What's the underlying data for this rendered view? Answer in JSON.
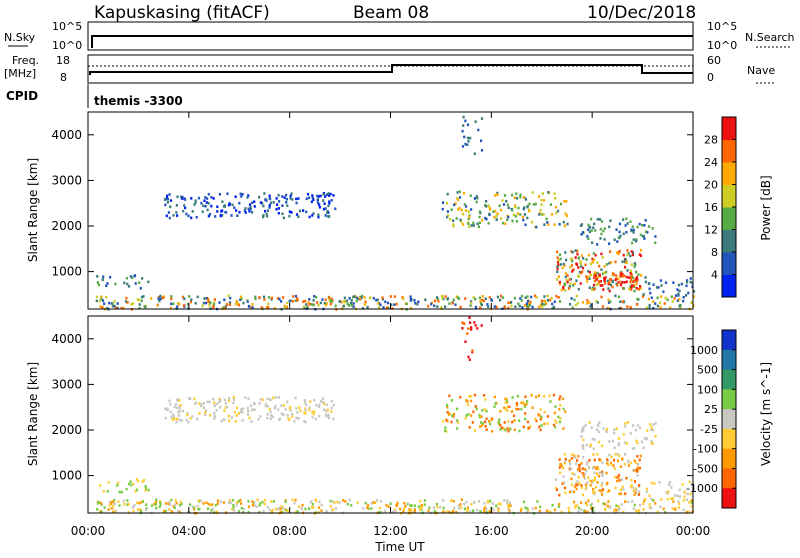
{
  "header": {
    "station": "Kapuskasing (fitACF)",
    "beam": "Beam 08",
    "date": "10/Dec/2018"
  },
  "sidepanel": {
    "nsky_label": "N.Sky",
    "nsky_ticks": [
      "10^5",
      "10^0"
    ],
    "nsearch_label": "N.Search",
    "freq_label_1": "Freq.",
    "freq_label_2": "[MHz]",
    "freq_ticks": [
      "18",
      "8"
    ],
    "nave_label": "Nave",
    "nave_ticks": [
      "60",
      "0"
    ],
    "cpid_label": "CPID",
    "cpid_value": "themis -3300"
  },
  "axes": {
    "ylabel": "Slant Range [km]",
    "yticks": [
      "1000",
      "2000",
      "3000",
      "4000"
    ],
    "xticks": [
      "00:00",
      "04:00",
      "08:00",
      "12:00",
      "16:00",
      "20:00",
      "00:00"
    ],
    "xlabel": "Time UT"
  },
  "colorbars": {
    "power": {
      "label": "Power [dB]",
      "ticks": [
        "4",
        "8",
        "12",
        "16",
        "20",
        "24",
        "28"
      ],
      "colors": [
        "#0022ee",
        "#2255bb",
        "#3a7a7a",
        "#55aa44",
        "#cccc22",
        "#ffaa00",
        "#ff6600",
        "#ee1111"
      ]
    },
    "velocity": {
      "label": "Velocity [m s^-1]",
      "ticks": [
        "1000",
        "500",
        "100",
        "25",
        "-25",
        "-100",
        "-500",
        "-1000"
      ],
      "colors": [
        "#1133cc",
        "#2277aa",
        "#339966",
        "#77cc44",
        "#c8c8c0",
        "#ffcc33",
        "#ff9900",
        "#ff6600",
        "#ee1111"
      ]
    }
  },
  "chart_data": [
    {
      "type": "heatmap",
      "name": "power",
      "x_range_hours": [
        0,
        24
      ],
      "y_range_km": [
        180,
        4500
      ],
      "clusters": [
        {
          "t": [
            0.3,
            24
          ],
          "r": [
            200,
            500
          ],
          "density": 0.55,
          "colors": [
            1,
            2,
            3,
            4,
            5,
            6
          ]
        },
        {
          "t": [
            0.3,
            2.5
          ],
          "r": [
            650,
            950
          ],
          "density": 0.3,
          "colors": [
            1,
            2,
            3
          ]
        },
        {
          "t": [
            3.0,
            9.8
          ],
          "r": [
            2200,
            2750
          ],
          "density": 0.45,
          "colors": [
            0,
            1,
            2
          ]
        },
        {
          "t": [
            14.0,
            19.0
          ],
          "r": [
            2000,
            2800
          ],
          "density": 0.35,
          "colors": [
            1,
            2,
            3,
            4,
            5
          ]
        },
        {
          "t": [
            18.5,
            21.9
          ],
          "r": [
            600,
            1500
          ],
          "density": 0.55,
          "colors": [
            2,
            3,
            4,
            5,
            6,
            7
          ]
        },
        {
          "t": [
            19.5,
            22.5
          ],
          "r": [
            1600,
            2200
          ],
          "density": 0.35,
          "colors": [
            1,
            2,
            3
          ]
        },
        {
          "t": [
            20.0,
            21.8
          ],
          "r": [
            700,
            1000
          ],
          "density": 0.8,
          "colors": [
            6,
            7
          ]
        },
        {
          "t": [
            14.8,
            15.6
          ],
          "r": [
            3500,
            4500
          ],
          "density": 0.2,
          "colors": [
            1,
            2
          ]
        },
        {
          "t": [
            22.0,
            24.0
          ],
          "r": [
            500,
            900
          ],
          "density": 0.35,
          "colors": [
            1,
            2
          ]
        }
      ]
    },
    {
      "type": "heatmap",
      "name": "velocity",
      "x_range_hours": [
        0,
        24
      ],
      "y_range_km": [
        180,
        4500
      ],
      "clusters": [
        {
          "t": [
            0.3,
            24
          ],
          "r": [
            200,
            500
          ],
          "density": 0.55,
          "colors": [
            3,
            4,
            5,
            6
          ]
        },
        {
          "t": [
            0.3,
            2.5
          ],
          "r": [
            650,
            950
          ],
          "density": 0.3,
          "colors": [
            3,
            5
          ]
        },
        {
          "t": [
            3.0,
            9.8
          ],
          "r": [
            2200,
            2750
          ],
          "density": 0.45,
          "colors": [
            4,
            4,
            4,
            5
          ]
        },
        {
          "t": [
            14.0,
            19.0
          ],
          "r": [
            2000,
            2800
          ],
          "density": 0.35,
          "colors": [
            3,
            5,
            6,
            7
          ]
        },
        {
          "t": [
            18.5,
            21.9
          ],
          "r": [
            600,
            1500
          ],
          "density": 0.55,
          "colors": [
            4,
            5,
            6,
            7
          ]
        },
        {
          "t": [
            19.5,
            22.5
          ],
          "r": [
            1600,
            2200
          ],
          "density": 0.35,
          "colors": [
            4,
            4,
            5
          ]
        },
        {
          "t": [
            14.8,
            15.6
          ],
          "r": [
            3500,
            4500
          ],
          "density": 0.2,
          "colors": [
            7,
            8
          ]
        },
        {
          "t": [
            22.0,
            24.0
          ],
          "r": [
            500,
            900
          ],
          "density": 0.35,
          "colors": [
            4,
            5
          ]
        }
      ]
    }
  ]
}
